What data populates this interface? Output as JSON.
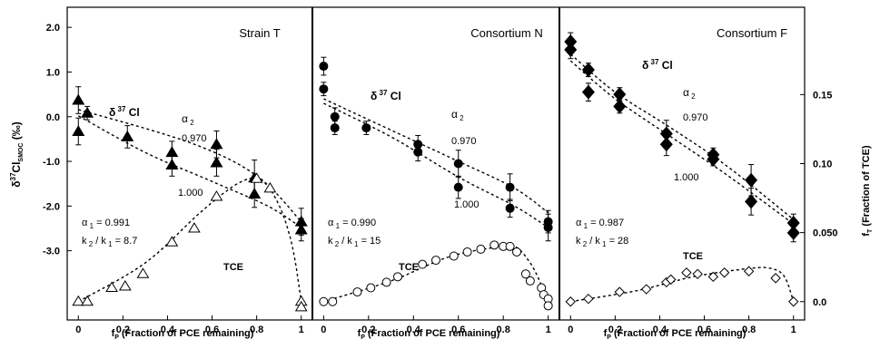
{
  "chart_data": {
    "type": "scatter",
    "left_axis": {
      "label_main": "δ",
      "label_sup": "37",
      "label_rest": "Cl",
      "label_sub": "SMOC",
      "label_unit": "(‰)",
      "ylim": [
        -4.55,
        2.45
      ],
      "ticks": [
        "2.0",
        "1.0",
        "0.0",
        "-1.0",
        "-2.0",
        "-3.0"
      ],
      "tick_values": [
        2.0,
        1.0,
        0.0,
        -1.0,
        -2.0,
        -3.0
      ]
    },
    "right_axis": {
      "label_main": "f",
      "label_sub": "T",
      "label_rest": "(Fraction of TCE)",
      "ylim": [
        -0.0133,
        0.2133
      ],
      "ticks": [
        "0.15",
        "0.10",
        "0.050",
        "0.0"
      ],
      "tick_values": [
        0.15,
        0.1,
        0.05,
        0.0
      ]
    },
    "x_ticks": [
      "0",
      "0.2",
      "0.4",
      "0.6",
      "0.8",
      "1"
    ],
    "x_tick_values": [
      0,
      0.2,
      0.4,
      0.6,
      0.8,
      1.0
    ],
    "xlim": [
      -0.05,
      1.05
    ],
    "panels": [
      {
        "title": "Strain T",
        "xlabel_main": "f",
        "xlabel_sub": "P",
        "xlabel_rest": "(Fraction of PCE remaining)",
        "marker": "triangle",
        "delta_label": {
          "main": "δ",
          "sup": "37",
          "rest": "Cl"
        },
        "alpha2_label": {
          "main": "α",
          "sub": "2"
        },
        "curve_labels": [
          "0.970",
          "1.000"
        ],
        "params": {
          "alpha1_main": "α",
          "alpha1_sub": "1",
          "alpha1_value": "= 0.991",
          "k_label": "k",
          "k_sub2": "2",
          "k_sub1": "1",
          "k_value": "= 8.7"
        },
        "tce_label": "TCE",
        "cl_points": [
          {
            "x": 0.0,
            "y": 0.37,
            "err": 0.3
          },
          {
            "x": 0.0,
            "y": -0.33,
            "err": 0.3
          },
          {
            "x": 0.04,
            "y": 0.08,
            "err": 0.15
          },
          {
            "x": 0.22,
            "y": -0.45,
            "err": 0.25
          },
          {
            "x": 0.42,
            "y": -0.8,
            "err": 0.25
          },
          {
            "x": 0.42,
            "y": -1.08,
            "err": 0.25
          },
          {
            "x": 0.62,
            "y": -0.62,
            "err": 0.3
          },
          {
            "x": 0.62,
            "y": -1.03,
            "err": 0.3
          },
          {
            "x": 0.79,
            "y": -1.37,
            "err": 0.4
          },
          {
            "x": 0.79,
            "y": -1.73,
            "err": 0.3
          },
          {
            "x": 1.0,
            "y": -2.35,
            "err": 0.3
          },
          {
            "x": 1.0,
            "y": -2.53,
            "err": 0.25
          }
        ],
        "curve_a": [
          [
            0.0,
            0.16
          ],
          [
            0.5,
            -0.58
          ],
          [
            0.8,
            -1.32
          ],
          [
            1.0,
            -2.35
          ]
        ],
        "curve_b": [
          [
            0.0,
            0.02
          ],
          [
            0.3,
            -0.8
          ],
          [
            0.6,
            -1.45
          ],
          [
            0.85,
            -2.0
          ],
          [
            1.0,
            -2.48
          ]
        ],
        "tce_points": [
          [
            0.0,
            0.0
          ],
          [
            0.04,
            0.0
          ],
          [
            0.15,
            0.01
          ],
          [
            0.21,
            0.011
          ],
          [
            0.29,
            0.02
          ],
          [
            0.42,
            0.043
          ],
          [
            0.52,
            0.053
          ],
          [
            0.62,
            0.076
          ],
          [
            0.8,
            0.089
          ],
          [
            0.86,
            0.082
          ],
          [
            1.0,
            0.0
          ],
          [
            1.0,
            -0.004
          ]
        ],
        "tce_curve": [
          [
            0.0,
            0.0
          ],
          [
            0.3,
            0.028
          ],
          [
            0.55,
            0.065
          ],
          [
            0.72,
            0.086
          ],
          [
            0.82,
            0.088
          ],
          [
            0.9,
            0.07
          ],
          [
            0.96,
            0.04
          ],
          [
            1.0,
            0.0
          ]
        ]
      },
      {
        "title": "Consortium N",
        "xlabel_main": "f",
        "xlabel_sub": "P",
        "xlabel_rest": "(Fraction of PCE remaining)",
        "marker": "circle",
        "delta_label": {
          "main": "δ",
          "sup": "37",
          "rest": "Cl"
        },
        "alpha2_label": {
          "main": "α",
          "sub": "2"
        },
        "curve_labels": [
          "0.970",
          "1.000"
        ],
        "params": {
          "alpha1_main": "α",
          "alpha1_sub": "1",
          "alpha1_value": "= 0.990",
          "k_label": "k",
          "k_sub2": "2",
          "k_sub1": "1",
          "k_value": "= 15"
        },
        "tce_label": "TCE",
        "cl_points": [
          {
            "x": 0.0,
            "y": 1.13,
            "err": 0.2
          },
          {
            "x": 0.0,
            "y": 0.62,
            "err": 0.15
          },
          {
            "x": 0.05,
            "y": 0.0,
            "err": 0.2
          },
          {
            "x": 0.05,
            "y": -0.25,
            "err": 0.15
          },
          {
            "x": 0.19,
            "y": -0.25,
            "err": 0.15
          },
          {
            "x": 0.42,
            "y": -0.62,
            "err": 0.2
          },
          {
            "x": 0.42,
            "y": -0.79,
            "err": 0.2
          },
          {
            "x": 0.6,
            "y": -1.05,
            "err": 0.3
          },
          {
            "x": 0.6,
            "y": -1.58,
            "err": 0.25
          },
          {
            "x": 0.83,
            "y": -1.58,
            "err": 0.3
          },
          {
            "x": 0.83,
            "y": -2.05,
            "err": 0.2
          },
          {
            "x": 1.0,
            "y": -2.35,
            "err": 0.25
          },
          {
            "x": 1.0,
            "y": -2.48,
            "err": 0.3
          }
        ],
        "curve_a": [
          [
            0.0,
            0.4
          ],
          [
            0.3,
            -0.3
          ],
          [
            0.6,
            -1.0
          ],
          [
            0.85,
            -1.6
          ],
          [
            1.0,
            -2.15
          ]
        ],
        "curve_b": [
          [
            0.0,
            0.3
          ],
          [
            0.3,
            -0.45
          ],
          [
            0.6,
            -1.35
          ],
          [
            0.85,
            -2.0
          ],
          [
            1.0,
            -2.48
          ]
        ],
        "tce_points": [
          [
            0.0,
            0.0
          ],
          [
            0.04,
            0.0
          ],
          [
            0.15,
            0.007
          ],
          [
            0.21,
            0.01
          ],
          [
            0.28,
            0.014
          ],
          [
            0.33,
            0.018
          ],
          [
            0.44,
            0.027
          ],
          [
            0.5,
            0.03
          ],
          [
            0.58,
            0.033
          ],
          [
            0.64,
            0.036
          ],
          [
            0.7,
            0.038
          ],
          [
            0.76,
            0.041
          ],
          [
            0.8,
            0.04
          ],
          [
            0.83,
            0.04
          ],
          [
            0.86,
            0.036
          ],
          [
            0.9,
            0.02
          ],
          [
            0.92,
            0.015
          ],
          [
            0.97,
            0.01
          ],
          [
            0.98,
            0.005
          ],
          [
            1.0,
            0.002
          ],
          [
            1.0,
            -0.003
          ]
        ],
        "tce_curve": [
          [
            0.0,
            0.0
          ],
          [
            0.3,
            0.015
          ],
          [
            0.55,
            0.032
          ],
          [
            0.75,
            0.039
          ],
          [
            0.85,
            0.04
          ],
          [
            0.92,
            0.028
          ],
          [
            0.97,
            0.012
          ],
          [
            1.0,
            0.0
          ]
        ]
      },
      {
        "title": "Consortium F",
        "xlabel_main": "f",
        "xlabel_sub": "P",
        "xlabel_rest": "(Fraction of PCE remaining)",
        "marker": "diamond",
        "delta_label": {
          "main": "δ",
          "sup": "37",
          "rest": "Cl"
        },
        "alpha2_label": {
          "main": "α",
          "sub": "2"
        },
        "curve_labels": [
          "0.970",
          "1.000"
        ],
        "params": {
          "alpha1_main": "α",
          "alpha1_sub": "1",
          "alpha1_value": "= 0.987",
          "k_label": "k",
          "k_sub2": "2",
          "k_sub1": "1",
          "k_value": "= 28"
        },
        "tce_label": "TCE",
        "cl_points": [
          {
            "x": 0.0,
            "y": 1.68,
            "err": 0.2
          },
          {
            "x": 0.0,
            "y": 1.5,
            "err": 0.2
          },
          {
            "x": 0.08,
            "y": 1.05,
            "err": 0.15
          },
          {
            "x": 0.08,
            "y": 0.55,
            "err": 0.2
          },
          {
            "x": 0.22,
            "y": 0.5,
            "err": 0.15
          },
          {
            "x": 0.22,
            "y": 0.23,
            "err": 0.15
          },
          {
            "x": 0.43,
            "y": -0.38,
            "err": 0.3
          },
          {
            "x": 0.43,
            "y": -0.62,
            "err": 0.25
          },
          {
            "x": 0.64,
            "y": -0.85,
            "err": 0.15
          },
          {
            "x": 0.64,
            "y": -0.95,
            "err": 0.15
          },
          {
            "x": 0.81,
            "y": -1.42,
            "err": 0.35
          },
          {
            "x": 0.81,
            "y": -1.9,
            "err": 0.3
          },
          {
            "x": 1.0,
            "y": -2.38,
            "err": 0.2
          },
          {
            "x": 1.0,
            "y": -2.6,
            "err": 0.2
          }
        ],
        "curve_a": [
          [
            0.0,
            1.4
          ],
          [
            0.2,
            0.55
          ],
          [
            0.45,
            -0.25
          ],
          [
            0.7,
            -1.1
          ],
          [
            1.0,
            -2.3
          ]
        ],
        "curve_b": [
          [
            0.0,
            1.25
          ],
          [
            0.2,
            0.4
          ],
          [
            0.45,
            -0.45
          ],
          [
            0.7,
            -1.3
          ],
          [
            1.0,
            -2.4
          ]
        ],
        "tce_points": [
          [
            0.0,
            0.0
          ],
          [
            0.08,
            0.002
          ],
          [
            0.22,
            0.007
          ],
          [
            0.34,
            0.009
          ],
          [
            0.43,
            0.014
          ],
          [
            0.45,
            0.016
          ],
          [
            0.52,
            0.021
          ],
          [
            0.57,
            0.02
          ],
          [
            0.64,
            0.018
          ],
          [
            0.69,
            0.021
          ],
          [
            0.8,
            0.022
          ],
          [
            0.92,
            0.017
          ],
          [
            1.0,
            0.0
          ]
        ],
        "tce_curve": [
          [
            0.0,
            0.0
          ],
          [
            0.3,
            0.008
          ],
          [
            0.55,
            0.018
          ],
          [
            0.8,
            0.024
          ],
          [
            0.9,
            0.024
          ],
          [
            0.96,
            0.018
          ],
          [
            1.0,
            0.0
          ]
        ]
      }
    ]
  }
}
